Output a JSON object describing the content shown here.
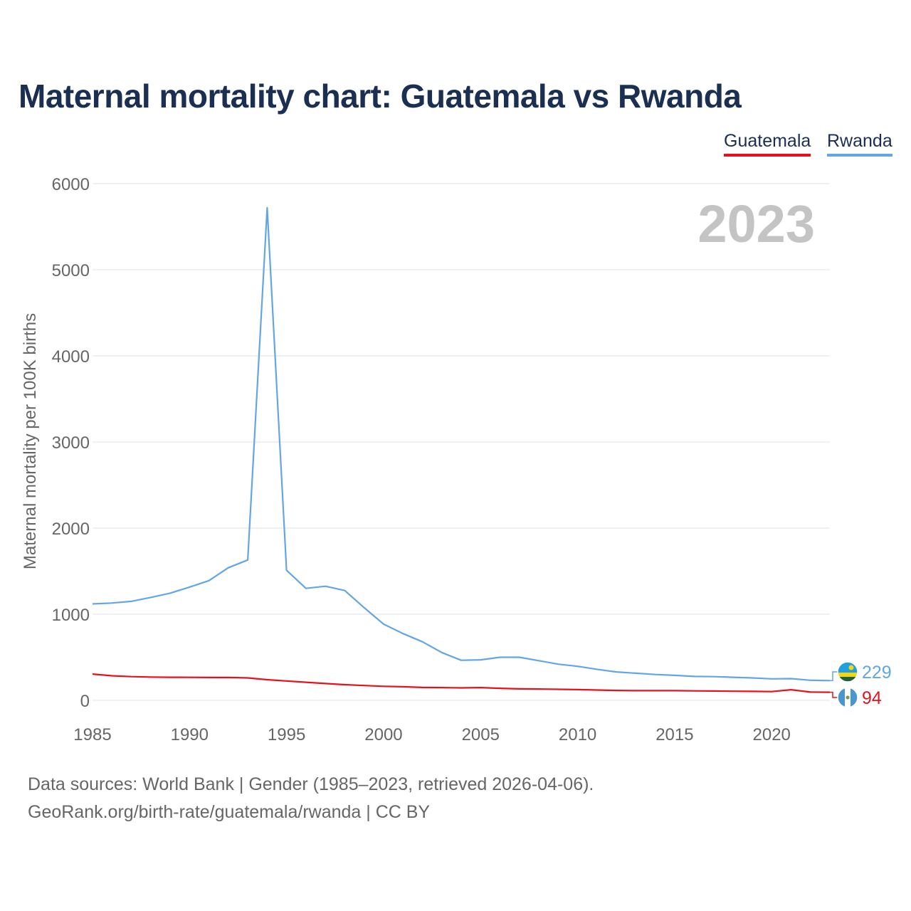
{
  "title": "Maternal mortality chart: Guatemala vs Rwanda",
  "legend": [
    {
      "name": "Guatemala",
      "color": "#e8111b"
    },
    {
      "name": "Rwanda",
      "color": "#63a6e6"
    }
  ],
  "year_label": "2023",
  "chart_data": {
    "type": "line",
    "title": "Maternal mortality chart: Guatemala vs Rwanda",
    "xlabel": "",
    "ylabel": "Maternal mortality per 100K births",
    "xlim": [
      1985,
      2023
    ],
    "ylim": [
      0,
      6000
    ],
    "x_ticks": [
      1985,
      1990,
      1995,
      2000,
      2005,
      2010,
      2015,
      2020
    ],
    "y_ticks": [
      0,
      1000,
      2000,
      3000,
      4000,
      5000,
      6000
    ],
    "grid": true,
    "x": [
      1985,
      1986,
      1987,
      1988,
      1989,
      1990,
      1991,
      1992,
      1993,
      1994,
      1995,
      1996,
      1997,
      1998,
      1999,
      2000,
      2001,
      2002,
      2003,
      2004,
      2005,
      2006,
      2007,
      2008,
      2009,
      2010,
      2011,
      2012,
      2013,
      2014,
      2015,
      2016,
      2017,
      2018,
      2019,
      2020,
      2021,
      2022,
      2023
    ],
    "series": [
      {
        "name": "Rwanda",
        "color": "#63a6e6",
        "values": [
          1120,
          1130,
          1150,
          1195,
          1245,
          1315,
          1390,
          1540,
          1630,
          5720,
          1510,
          1300,
          1325,
          1275,
          1075,
          885,
          775,
          680,
          555,
          465,
          470,
          500,
          500,
          460,
          420,
          395,
          360,
          330,
          315,
          300,
          290,
          278,
          275,
          268,
          260,
          250,
          252,
          233,
          229
        ],
        "end_label": "229"
      },
      {
        "name": "Guatemala",
        "color": "#e8111b",
        "values": [
          305,
          285,
          275,
          270,
          268,
          267,
          265,
          265,
          260,
          240,
          225,
          210,
          195,
          182,
          172,
          163,
          158,
          150,
          148,
          145,
          148,
          140,
          133,
          131,
          128,
          125,
          120,
          115,
          112,
          112,
          112,
          110,
          108,
          106,
          104,
          102,
          123,
          96,
          94
        ],
        "end_label": "94"
      }
    ]
  },
  "footer": {
    "source": "Data sources: World Bank | Gender (1985–2023, retrieved 2026-04-06).",
    "credit": "GeoRank.org/birth-rate/guatemala/rwanda | CC BY"
  }
}
